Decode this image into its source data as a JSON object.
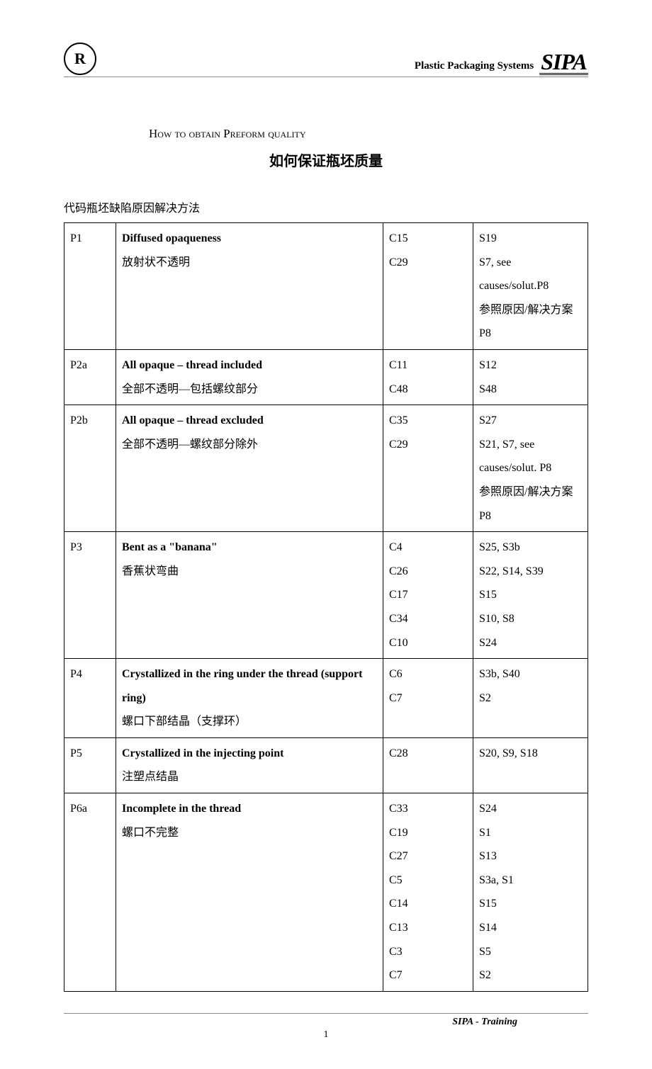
{
  "header": {
    "logo_left": "R",
    "text": "Plastic Packaging Systems",
    "logo_right": "SIPA"
  },
  "title": {
    "en": "How to obtain Preform quality",
    "zh": "如何保证瓶坯质量"
  },
  "intro": "代码瓶坯缺陷原因解决方法",
  "rows": [
    {
      "code": "P1",
      "defect_en": "Diffused opaqueness",
      "defect_zh": "放射状不透明",
      "causes": [
        "C15",
        "C29"
      ],
      "solutions": [
        "S19",
        "S7, see causes/solut.P8\n参照原因/解决方案 P8"
      ]
    },
    {
      "code": "P2a",
      "defect_en": "All opaque – thread included",
      "defect_zh": "全部不透明—包括螺纹部分",
      "causes": [
        "C11",
        "C48"
      ],
      "solutions": [
        "S12",
        "S48"
      ]
    },
    {
      "code": "P2b",
      "defect_en": "All opaque – thread excluded",
      "defect_zh": "全部不透明—螺纹部分除外",
      "causes": [
        "C35",
        "C29"
      ],
      "solutions": [
        "S27",
        "S21, S7, see causes/solut. P8\n参照原因/解决方案 P8"
      ]
    },
    {
      "code": "P3",
      "defect_en": "Bent as a \"banana\"",
      "defect_zh": "香蕉状弯曲",
      "causes": [
        "C4",
        "C26",
        "C17",
        "C34",
        "C10"
      ],
      "solutions": [
        "S25, S3b",
        "S22, S14, S39",
        "S15",
        "S10, S8",
        "S24"
      ]
    },
    {
      "code": "P4",
      "defect_en": "Crystallized in the ring under the thread (support ring)",
      "defect_zh": "螺口下部结晶（支撑环）",
      "causes": [
        "C6",
        "C7"
      ],
      "solutions": [
        "S3b, S40",
        "S2"
      ]
    },
    {
      "code": "P5",
      "defect_en": "Crystallized in the injecting point",
      "defect_zh": "注塑点结晶",
      "causes": [
        "C28"
      ],
      "solutions": [
        "S20, S9, S18"
      ]
    },
    {
      "code": "P6a",
      "defect_en": "Incomplete in the thread",
      "defect_zh": "螺口不完整",
      "causes": [
        "C33",
        "C19",
        "C27",
        "C5",
        "C14",
        "C13",
        "C3",
        "C7"
      ],
      "solutions": [
        "S24",
        "S1",
        "S13",
        "S3a, S1",
        "S15",
        "S14",
        "S5",
        "S2"
      ]
    }
  ],
  "footer": {
    "right": "SIPA - Training",
    "page": "1"
  }
}
